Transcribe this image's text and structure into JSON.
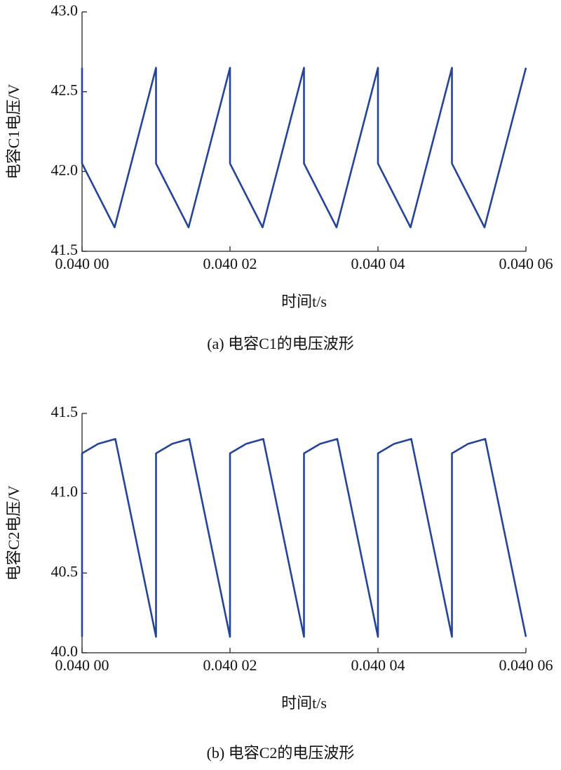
{
  "chart_data": [
    {
      "type": "line",
      "caption": "(a) 电容C1的电压波形",
      "x_label": "时间t/s",
      "y_label": "电容C1电压/V",
      "color": "#24449a",
      "xlim": [
        0.04,
        0.04006
      ],
      "xticks": [
        {
          "value": 0.04,
          "label": "0.040 00"
        },
        {
          "value": 0.04002,
          "label": "0.040 02"
        },
        {
          "value": 0.04004,
          "label": "0.040 04"
        },
        {
          "value": 0.04006,
          "label": "0.040 06"
        }
      ],
      "ylim": [
        41.5,
        43.0
      ],
      "yticks": [
        41.5,
        {
          "value": 42.0,
          "label": "42.0"
        },
        42.5,
        {
          "value": 43.0,
          "label": "43.0"
        }
      ],
      "x": [
        0.04,
        0.04,
        0.0400044,
        0.04001,
        0.04001,
        0.0400144,
        0.04002,
        0.04002,
        0.0400244,
        0.04003,
        0.04003,
        0.0400344,
        0.04004,
        0.04004,
        0.0400444,
        0.04005,
        0.04005,
        0.0400544,
        0.04006
      ],
      "values": [
        42.65,
        42.05,
        41.65,
        42.65,
        42.05,
        41.65,
        42.65,
        42.05,
        41.65,
        42.65,
        42.05,
        41.65,
        42.65,
        42.05,
        41.65,
        42.65,
        42.05,
        41.65,
        42.65
      ]
    },
    {
      "type": "line",
      "caption": "(b) 电容C2的电压波形",
      "x_label": "时间t/s",
      "y_label": "电容C2电压/V",
      "color": "#24449a",
      "xlim": [
        0.04,
        0.04006
      ],
      "xticks": [
        {
          "value": 0.04,
          "label": "0.040 00"
        },
        {
          "value": 0.04002,
          "label": "0.040 02"
        },
        {
          "value": 0.04004,
          "label": "0.040 04"
        },
        {
          "value": 0.04006,
          "label": "0.040 06"
        }
      ],
      "ylim": [
        40.0,
        41.5
      ],
      "yticks": [
        {
          "value": 40.0,
          "label": "40.0"
        },
        40.5,
        {
          "value": 41.0,
          "label": "41.0"
        },
        41.5
      ],
      "x": [
        0.04,
        0.04,
        0.0400022,
        0.0400045,
        0.04001,
        0.04001,
        0.0400122,
        0.0400145,
        0.04002,
        0.04002,
        0.0400222,
        0.0400245,
        0.04003,
        0.04003,
        0.0400322,
        0.0400345,
        0.04004,
        0.04004,
        0.0400422,
        0.0400445,
        0.04005,
        0.04005,
        0.0400522,
        0.0400545,
        0.04006
      ],
      "values": [
        40.1,
        41.25,
        41.31,
        41.34,
        40.1,
        41.25,
        41.31,
        41.34,
        40.1,
        41.25,
        41.31,
        41.34,
        40.1,
        41.25,
        41.31,
        41.34,
        40.1,
        41.25,
        41.31,
        41.34,
        40.1,
        41.25,
        41.31,
        41.34,
        40.1
      ]
    }
  ]
}
